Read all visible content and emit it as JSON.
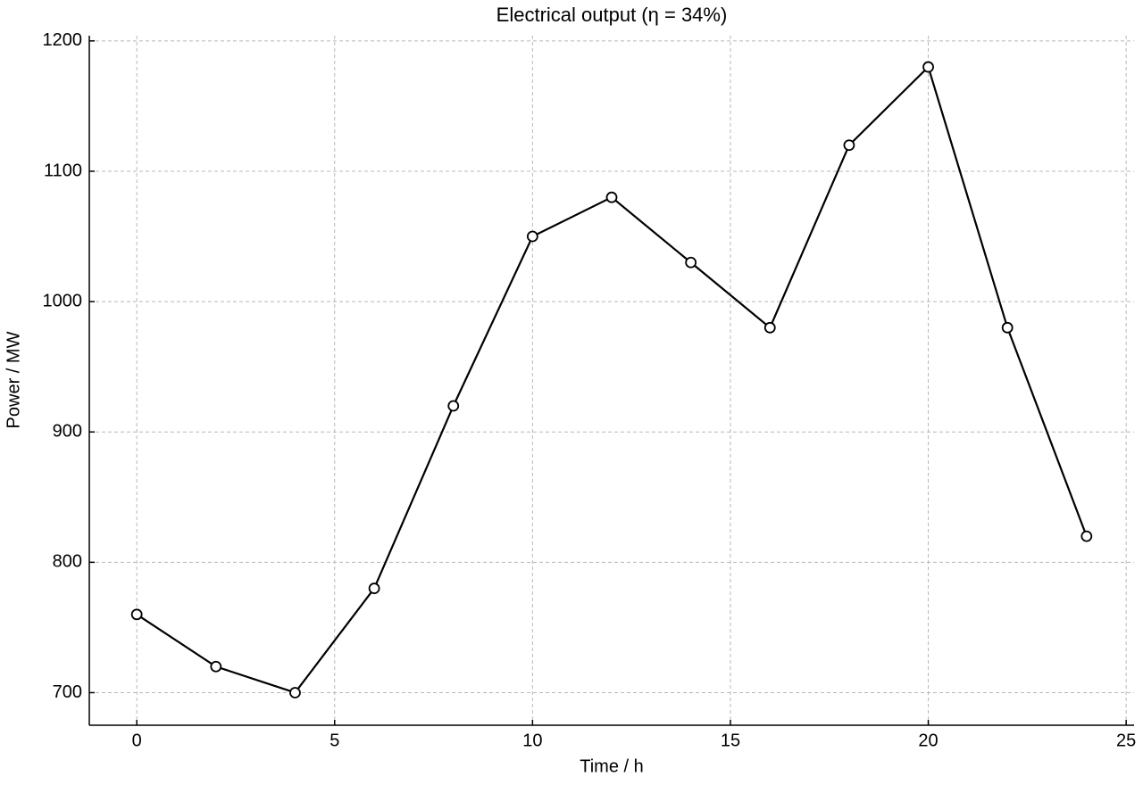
{
  "chart_data": {
    "type": "line",
    "title": "Electrical output (η = 34%)",
    "xlabel": "Time / h",
    "ylabel": "Power / MW",
    "x": [
      0,
      2,
      4,
      6,
      8,
      10,
      12,
      14,
      16,
      18,
      20,
      22,
      24
    ],
    "series": [
      {
        "color": "#000000",
        "values": [
          760,
          720,
          700,
          780,
          920,
          1050,
          1080,
          1030,
          980,
          1120,
          1180,
          980,
          820
        ]
      }
    ],
    "xlim": [
      -1.2,
      25.2
    ],
    "ylim": [
      675,
      1204
    ],
    "xticks": [
      0,
      5,
      10,
      15,
      20,
      25
    ],
    "yticks": [
      700,
      800,
      900,
      1000,
      1100,
      1200
    ],
    "grid": true
  }
}
